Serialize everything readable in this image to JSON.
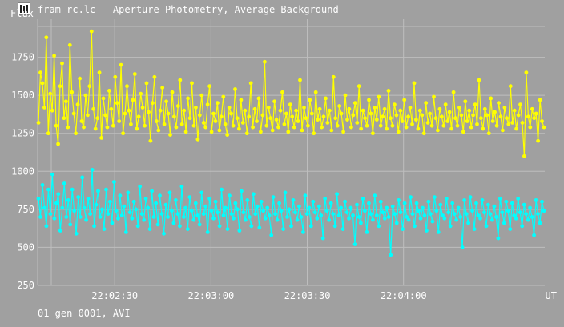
{
  "window": {
    "title": "fram-rc.lc - Aperture Photometry, Average Background",
    "icon": "lightcurve-app-icon"
  },
  "footer": {
    "label": "01 gen 0001, AVI"
  },
  "colors": {
    "background": "#a0a0a0",
    "grid": "#bebebe",
    "text": "#ffffff",
    "series_1": "#ffff00",
    "series_2": "#00ffff"
  },
  "chart_data": {
    "type": "line",
    "ylabel": "Flux",
    "xlabel": "UT",
    "ylim": [
      250,
      2000
    ],
    "yticks": [
      250,
      500,
      750,
      1000,
      1250,
      1500,
      1750
    ],
    "x_range": [
      "22:02:06",
      "22:04:44"
    ],
    "xticks": [
      "22:02:30",
      "22:03:00",
      "22:03:30",
      "22:04:00"
    ],
    "grid": true,
    "legend": "none",
    "series": [
      {
        "color": "#ffff00",
        "values": [
          1320,
          1650,
          1580,
          1420,
          1880,
          1250,
          1510,
          1400,
          1760,
          1300,
          1180,
          1560,
          1710,
          1350,
          1460,
          1290,
          1830,
          1520,
          1380,
          1250,
          1440,
          1610,
          1330,
          1290,
          1500,
          1370,
          1560,
          1920,
          1410,
          1280,
          1350,
          1650,
          1220,
          1480,
          1370,
          1290,
          1530,
          1410,
          1300,
          1620,
          1450,
          1330,
          1700,
          1250,
          1380,
          1560,
          1400,
          1310,
          1470,
          1640,
          1280,
          1360,
          1510,
          1420,
          1300,
          1580,
          1390,
          1200,
          1450,
          1620,
          1330,
          1270,
          1400,
          1550,
          1310,
          1460,
          1380,
          1240,
          1520,
          1360,
          1290,
          1430,
          1600,
          1310,
          1400,
          1260,
          1480,
          1350,
          1580,
          1300,
          1420,
          1210,
          1370,
          1500,
          1320,
          1290,
          1440,
          1560,
          1260,
          1380,
          1330,
          1450,
          1270,
          1360,
          1490,
          1310,
          1240,
          1420,
          1380,
          1300,
          1540,
          1350,
          1280,
          1470,
          1320,
          1400,
          1250,
          1360,
          1580,
          1290,
          1410,
          1330,
          1480,
          1260,
          1370,
          1720,
          1300,
          1420,
          1350,
          1270,
          1460,
          1340,
          1290,
          1400,
          1520,
          1310,
          1380,
          1260,
          1440,
          1360,
          1290,
          1400,
          1330,
          1600,
          1270,
          1420,
          1350,
          1300,
          1470,
          1380,
          1250,
          1520,
          1340,
          1410,
          1290,
          1360,
          1480,
          1320,
          1400,
          1270,
          1620,
          1350,
          1300,
          1430,
          1380,
          1260,
          1500,
          1340,
          1410,
          1290,
          1370,
          1450,
          1320,
          1560,
          1280,
          1400,
          1350,
          1300,
          1470,
          1380,
          1250,
          1420,
          1340,
          1490,
          1300,
          1360,
          1410,
          1280,
          1530,
          1350,
          1300,
          1440,
          1370,
          1260,
          1400,
          1330,
          1470,
          1290,
          1360,
          1420,
          1310,
          1580,
          1340,
          1280,
          1400,
          1370,
          1250,
          1450,
          1320,
          1380,
          1300,
          1490,
          1350,
          1270,
          1410,
          1360,
          1300,
          1440,
          1330,
          1390,
          1280,
          1520,
          1350,
          1300,
          1420,
          1370,
          1260,
          1460,
          1330,
          1400,
          1290,
          1370,
          1440,
          1310,
          1600,
          1350,
          1280,
          1410,
          1370,
          1250,
          1480,
          1330,
          1390,
          1300,
          1450,
          1360,
          1270,
          1420,
          1350,
          1310,
          1560,
          1320,
          1400,
          1280,
          1370,
          1440,
          1320,
          1100,
          1650,
          1360,
          1290,
          1410,
          1350,
          1380,
          1200,
          1470,
          1330,
          1290
        ]
      },
      {
        "color": "#00ffff",
        "values": [
          820,
          700,
          910,
          760,
          640,
          880,
          720,
          980,
          690,
          790,
          850,
          610,
          760,
          920,
          700,
          810,
          650,
          880,
          740,
          590,
          830,
          700,
          960,
          760,
          680,
          820,
          720,
          1010,
          640,
          780,
          870,
          700,
          750,
          620,
          880,
          720,
          800,
          660,
          930,
          740,
          690,
          840,
          710,
          770,
          600,
          860,
          730,
          690,
          800,
          750,
          640,
          900,
          720,
          680,
          820,
          760,
          620,
          870,
          700,
          790,
          650,
          840,
          720,
          590,
          780,
          700,
          860,
          740,
          660,
          810,
          720,
          640,
          900,
          700,
          760,
          620,
          830,
          740,
          680,
          790,
          710,
          650,
          860,
          720,
          770,
          600,
          820,
          740,
          690,
          800,
          730,
          640,
          880,
          710,
          760,
          620,
          840,
          720,
          690,
          790,
          750,
          610,
          870,
          730,
          680,
          810,
          700,
          640,
          850,
          720,
          770,
          630,
          800,
          740,
          690,
          760,
          710,
          580,
          830,
          720,
          680,
          790,
          740,
          620,
          860,
          700,
          750,
          640,
          810,
          730,
          680,
          770,
          700,
          600,
          840,
          720,
          760,
          640,
          800,
          730,
          690,
          770,
          710,
          560,
          820,
          740,
          680,
          790,
          720,
          640,
          850,
          710,
          760,
          620,
          800,
          730,
          690,
          760,
          710,
          520,
          780,
          700,
          660,
          820,
          740,
          600,
          790,
          720,
          680,
          840,
          710,
          640,
          800,
          730,
          690,
          760,
          700,
          450,
          770,
          720,
          660,
          810,
          730,
          620,
          790,
          700,
          680,
          830,
          720,
          640,
          790,
          740,
          690,
          760,
          710,
          610,
          800,
          720,
          670,
          830,
          740,
          600,
          780,
          710,
          690,
          820,
          730,
          640,
          790,
          720,
          680,
          760,
          700,
          500,
          810,
          720,
          660,
          830,
          740,
          620,
          790,
          710,
          690,
          810,
          730,
          640,
          780,
          720,
          680,
          770,
          700,
          560,
          820,
          730,
          660,
          800,
          740,
          620,
          790,
          710,
          690,
          820,
          730,
          640,
          780,
          720,
          680,
          760,
          700,
          580,
          810,
          720,
          660,
          800,
          740
        ]
      }
    ]
  }
}
